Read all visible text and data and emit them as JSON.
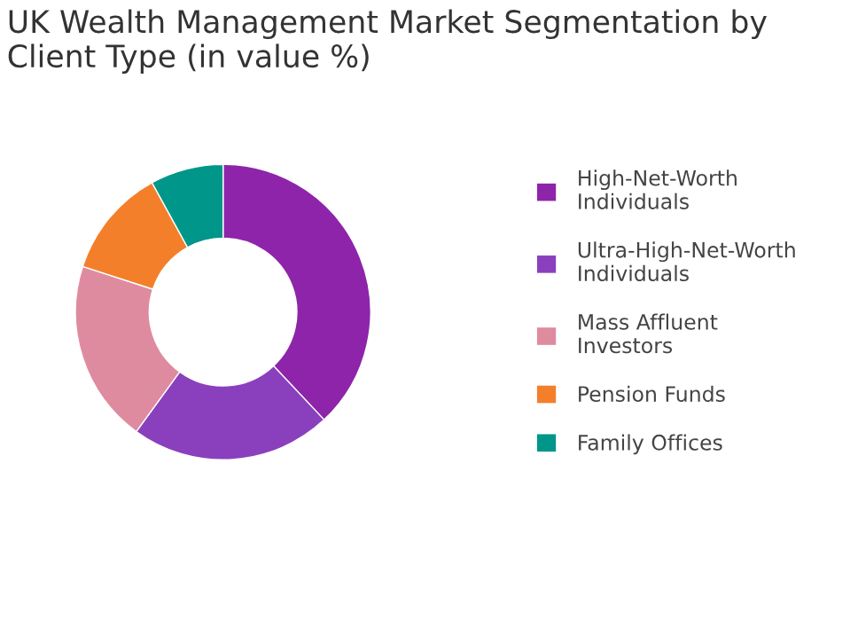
{
  "chart_data": {
    "type": "donut",
    "title": "UK Wealth Management Market Segmentation by Client Type (in value %)",
    "categories": [
      "High-Net-Worth Individuals",
      "Ultra-High-Net-Worth Individuals",
      "Mass Affluent Investors",
      "Pension Funds",
      "Family Offices"
    ],
    "values": [
      38,
      22,
      20,
      12,
      8
    ],
    "colors": [
      "#8e24aa",
      "#8a40bd",
      "#de8ba0",
      "#f47f2a",
      "#00968a"
    ],
    "legend": "right"
  }
}
